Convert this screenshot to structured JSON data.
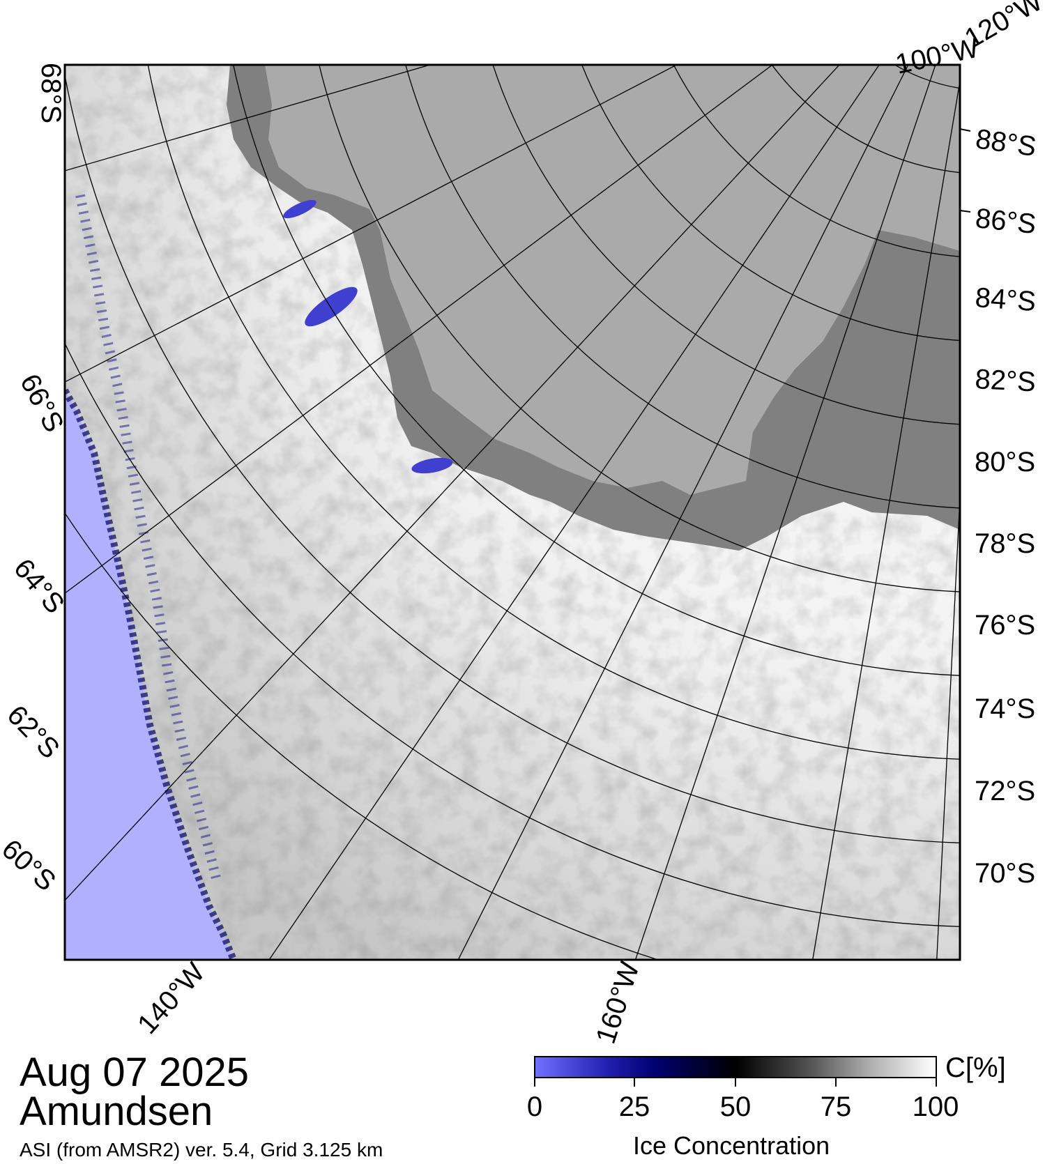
{
  "map": {
    "region_name": "Amundsen",
    "date": "Aug 07 2025",
    "product": "ASI (from AMSR2) ver. 5.4,  Grid 3.125 km",
    "land_color": "#aaaaaa",
    "ice_shelf_color": "#808080",
    "open_water_color": "#b0b0ff",
    "lat_labels_right": [
      "88°S",
      "86°S",
      "84°S",
      "82°S",
      "80°S",
      "78°S",
      "76°S",
      "74°S",
      "72°S",
      "70°S"
    ],
    "lat_labels_left": [
      "68°S",
      "66°S",
      "64°S",
      "62°S",
      "60°S"
    ],
    "lon_labels": [
      "140°W",
      "160°W",
      "100°W",
      "120°W"
    ]
  },
  "colorbar": {
    "title": "Ice Concentration",
    "unit": "C[%]",
    "ticks": [
      "0",
      "25",
      "50",
      "75",
      "100"
    ],
    "colors": [
      "#7070ff",
      "#000070",
      "#000000",
      "#808080",
      "#ffffff"
    ]
  }
}
